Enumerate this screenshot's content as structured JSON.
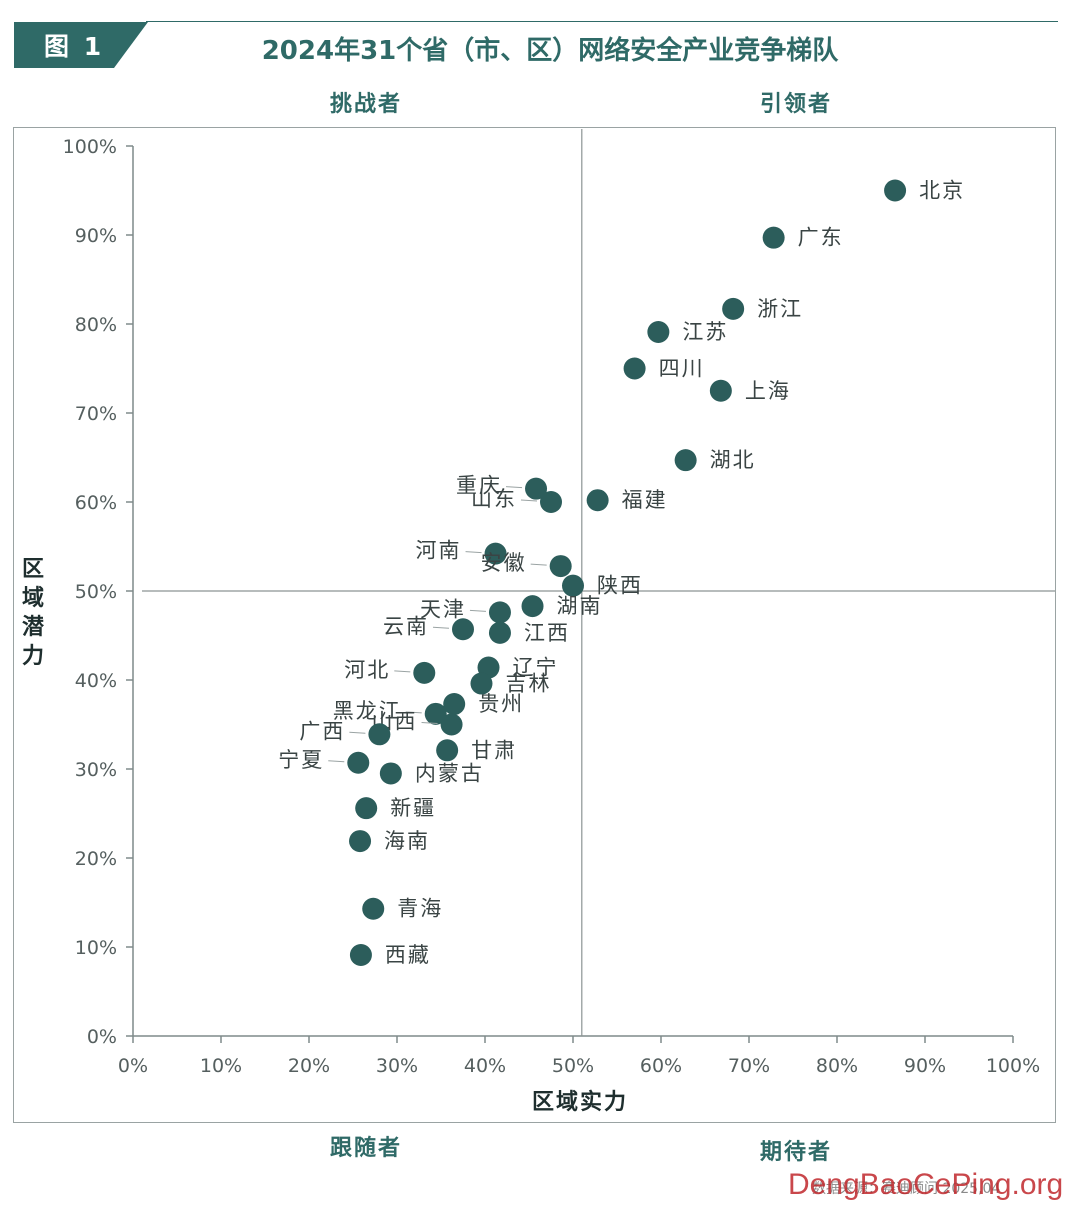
{
  "figure": {
    "badge_label": "图 1",
    "title": "2024年31个省（市、区）网络安全产业竞争梯队"
  },
  "quadrants": {
    "top_left": "挑战者",
    "top_right": "引领者",
    "bottom_left": "跟随者",
    "bottom_right": "期待者"
  },
  "source_note": "数据来源：赛迪顾问 2025,04",
  "watermark": "DengBaoCePing.org",
  "colors": {
    "accent": "#2f6a67",
    "point": "#2c5d5b",
    "axis": "#7f8a8a",
    "divider": "#8c9494"
  },
  "chart_data": {
    "type": "scatter",
    "title": "2024年31个省（市、区）网络安全产业竞争梯队",
    "xlabel": "区域实力",
    "ylabel": "区域潜力",
    "xlim": [
      0,
      100
    ],
    "ylim": [
      0,
      100
    ],
    "x_ticks": [
      "0%",
      "10%",
      "20%",
      "30%",
      "40%",
      "50%",
      "60%",
      "70%",
      "80%",
      "90%",
      "100%"
    ],
    "y_ticks": [
      "0%",
      "10%",
      "20%",
      "30%",
      "40%",
      "50%",
      "60%",
      "70%",
      "80%",
      "90%",
      "100%"
    ],
    "divider": {
      "x": 51,
      "y": 50
    },
    "grid": false,
    "points": [
      {
        "name": "北京",
        "x": 86.6,
        "y": 95.0,
        "label_side": "right"
      },
      {
        "name": "广东",
        "x": 72.8,
        "y": 89.7,
        "label_side": "right"
      },
      {
        "name": "浙江",
        "x": 68.2,
        "y": 81.7,
        "label_side": "right"
      },
      {
        "name": "江苏",
        "x": 59.7,
        "y": 79.1,
        "label_side": "right"
      },
      {
        "name": "四川",
        "x": 57.0,
        "y": 75.0,
        "label_side": "right"
      },
      {
        "name": "上海",
        "x": 66.8,
        "y": 72.5,
        "label_side": "right"
      },
      {
        "name": "湖北",
        "x": 62.8,
        "y": 64.7,
        "label_side": "right"
      },
      {
        "name": "福建",
        "x": 52.8,
        "y": 60.2,
        "label_side": "right"
      },
      {
        "name": "重庆",
        "x": 45.8,
        "y": 61.5,
        "label_side": "left"
      },
      {
        "name": "山东",
        "x": 47.5,
        "y": 60.0,
        "label_side": "left"
      },
      {
        "name": "河南",
        "x": 41.2,
        "y": 54.2,
        "label_side": "left"
      },
      {
        "name": "安徽",
        "x": 48.6,
        "y": 52.8,
        "label_side": "left"
      },
      {
        "name": "陕西",
        "x": 50.0,
        "y": 50.6,
        "label_side": "right"
      },
      {
        "name": "天津",
        "x": 41.7,
        "y": 47.6,
        "label_side": "left"
      },
      {
        "name": "湖南",
        "x": 45.4,
        "y": 48.3,
        "label_side": "right"
      },
      {
        "name": "云南",
        "x": 37.5,
        "y": 45.7,
        "label_side": "left"
      },
      {
        "name": "江西",
        "x": 41.7,
        "y": 45.3,
        "label_side": "right"
      },
      {
        "name": "河北",
        "x": 33.1,
        "y": 40.8,
        "label_side": "left"
      },
      {
        "name": "辽宁",
        "x": 40.4,
        "y": 41.4,
        "label_side": "right"
      },
      {
        "name": "吉林",
        "x": 39.6,
        "y": 39.6,
        "label_side": "right"
      },
      {
        "name": "黑龙江",
        "x": 34.4,
        "y": 36.2,
        "label_side": "left"
      },
      {
        "name": "贵州",
        "x": 36.5,
        "y": 37.3,
        "label_side": "right"
      },
      {
        "name": "山西",
        "x": 36.2,
        "y": 35.0,
        "label_side": "left"
      },
      {
        "name": "广西",
        "x": 28.0,
        "y": 33.9,
        "label_side": "left"
      },
      {
        "name": "甘肃",
        "x": 35.7,
        "y": 32.1,
        "label_side": "right"
      },
      {
        "name": "宁夏",
        "x": 25.6,
        "y": 30.7,
        "label_side": "left"
      },
      {
        "name": "内蒙古",
        "x": 29.3,
        "y": 29.5,
        "label_side": "right"
      },
      {
        "name": "新疆",
        "x": 26.5,
        "y": 25.6,
        "label_side": "right"
      },
      {
        "name": "海南",
        "x": 25.8,
        "y": 21.9,
        "label_side": "right"
      },
      {
        "name": "青海",
        "x": 27.3,
        "y": 14.3,
        "label_side": "right"
      },
      {
        "name": "西藏",
        "x": 25.9,
        "y": 9.1,
        "label_side": "right"
      }
    ]
  }
}
